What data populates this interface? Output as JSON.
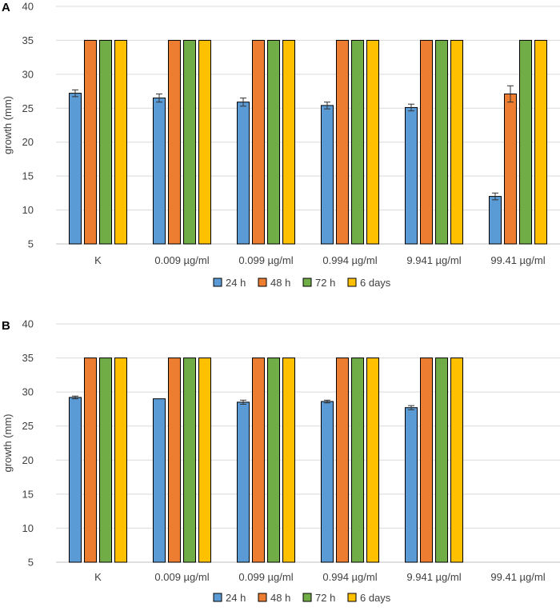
{
  "chart_data": [
    {
      "panel": "A",
      "type": "bar",
      "ylabel": "growth (mm)",
      "xlabel": "",
      "ylim": [
        5,
        40
      ],
      "yticks": [
        5,
        10,
        15,
        20,
        25,
        30,
        35,
        40
      ],
      "categories": [
        "K",
        "0.009 µg/ml",
        "0.099 µg/ml",
        "0.994 µg/ml",
        "9.941 µg/ml",
        "99.41 µg/ml"
      ],
      "series": [
        {
          "name": "24 h",
          "color": "#5b9bd5",
          "values": [
            27.2,
            26.5,
            25.9,
            25.4,
            25.1,
            12.0
          ],
          "errors": [
            0.5,
            0.6,
            0.6,
            0.5,
            0.5,
            0.5
          ]
        },
        {
          "name": "48 h",
          "color": "#ed7d31",
          "values": [
            35,
            35,
            35,
            35,
            35,
            27.1
          ],
          "errors": [
            0,
            0,
            0,
            0,
            0,
            1.2
          ]
        },
        {
          "name": "72 h",
          "color": "#70ad47",
          "values": [
            35,
            35,
            35,
            35,
            35,
            35
          ],
          "errors": [
            0,
            0,
            0,
            0,
            0,
            0
          ]
        },
        {
          "name": "6 days",
          "color": "#ffc000",
          "values": [
            35,
            35,
            35,
            35,
            35,
            35
          ],
          "errors": [
            0,
            0,
            0,
            0,
            0,
            0
          ]
        }
      ],
      "legend": "bottom"
    },
    {
      "panel": "B",
      "type": "bar",
      "ylabel": "growth (mm)",
      "xlabel": "",
      "ylim": [
        5,
        40
      ],
      "yticks": [
        5,
        10,
        15,
        20,
        25,
        30,
        35,
        40
      ],
      "categories": [
        "K",
        "0.009 µg/ml",
        "0.099 µg/ml",
        "0.994 µg/ml",
        "9.941 µg/ml",
        "99.41 µg/ml"
      ],
      "series": [
        {
          "name": "24 h",
          "color": "#5b9bd5",
          "values": [
            29.2,
            29.0,
            28.5,
            28.6,
            27.7,
            null
          ],
          "errors": [
            0.2,
            0,
            0.3,
            0.2,
            0.3,
            0
          ]
        },
        {
          "name": "48 h",
          "color": "#ed7d31",
          "values": [
            35,
            35,
            35,
            35,
            35,
            null
          ],
          "errors": [
            0,
            0,
            0,
            0,
            0,
            0
          ]
        },
        {
          "name": "72 h",
          "color": "#70ad47",
          "values": [
            35,
            35,
            35,
            35,
            35,
            null
          ],
          "errors": [
            0,
            0,
            0,
            0,
            0,
            0
          ]
        },
        {
          "name": "6 days",
          "color": "#ffc000",
          "values": [
            35,
            35,
            35,
            35,
            35,
            null
          ],
          "errors": [
            0,
            0,
            0,
            0,
            0,
            0
          ]
        }
      ],
      "legend": "bottom"
    }
  ]
}
